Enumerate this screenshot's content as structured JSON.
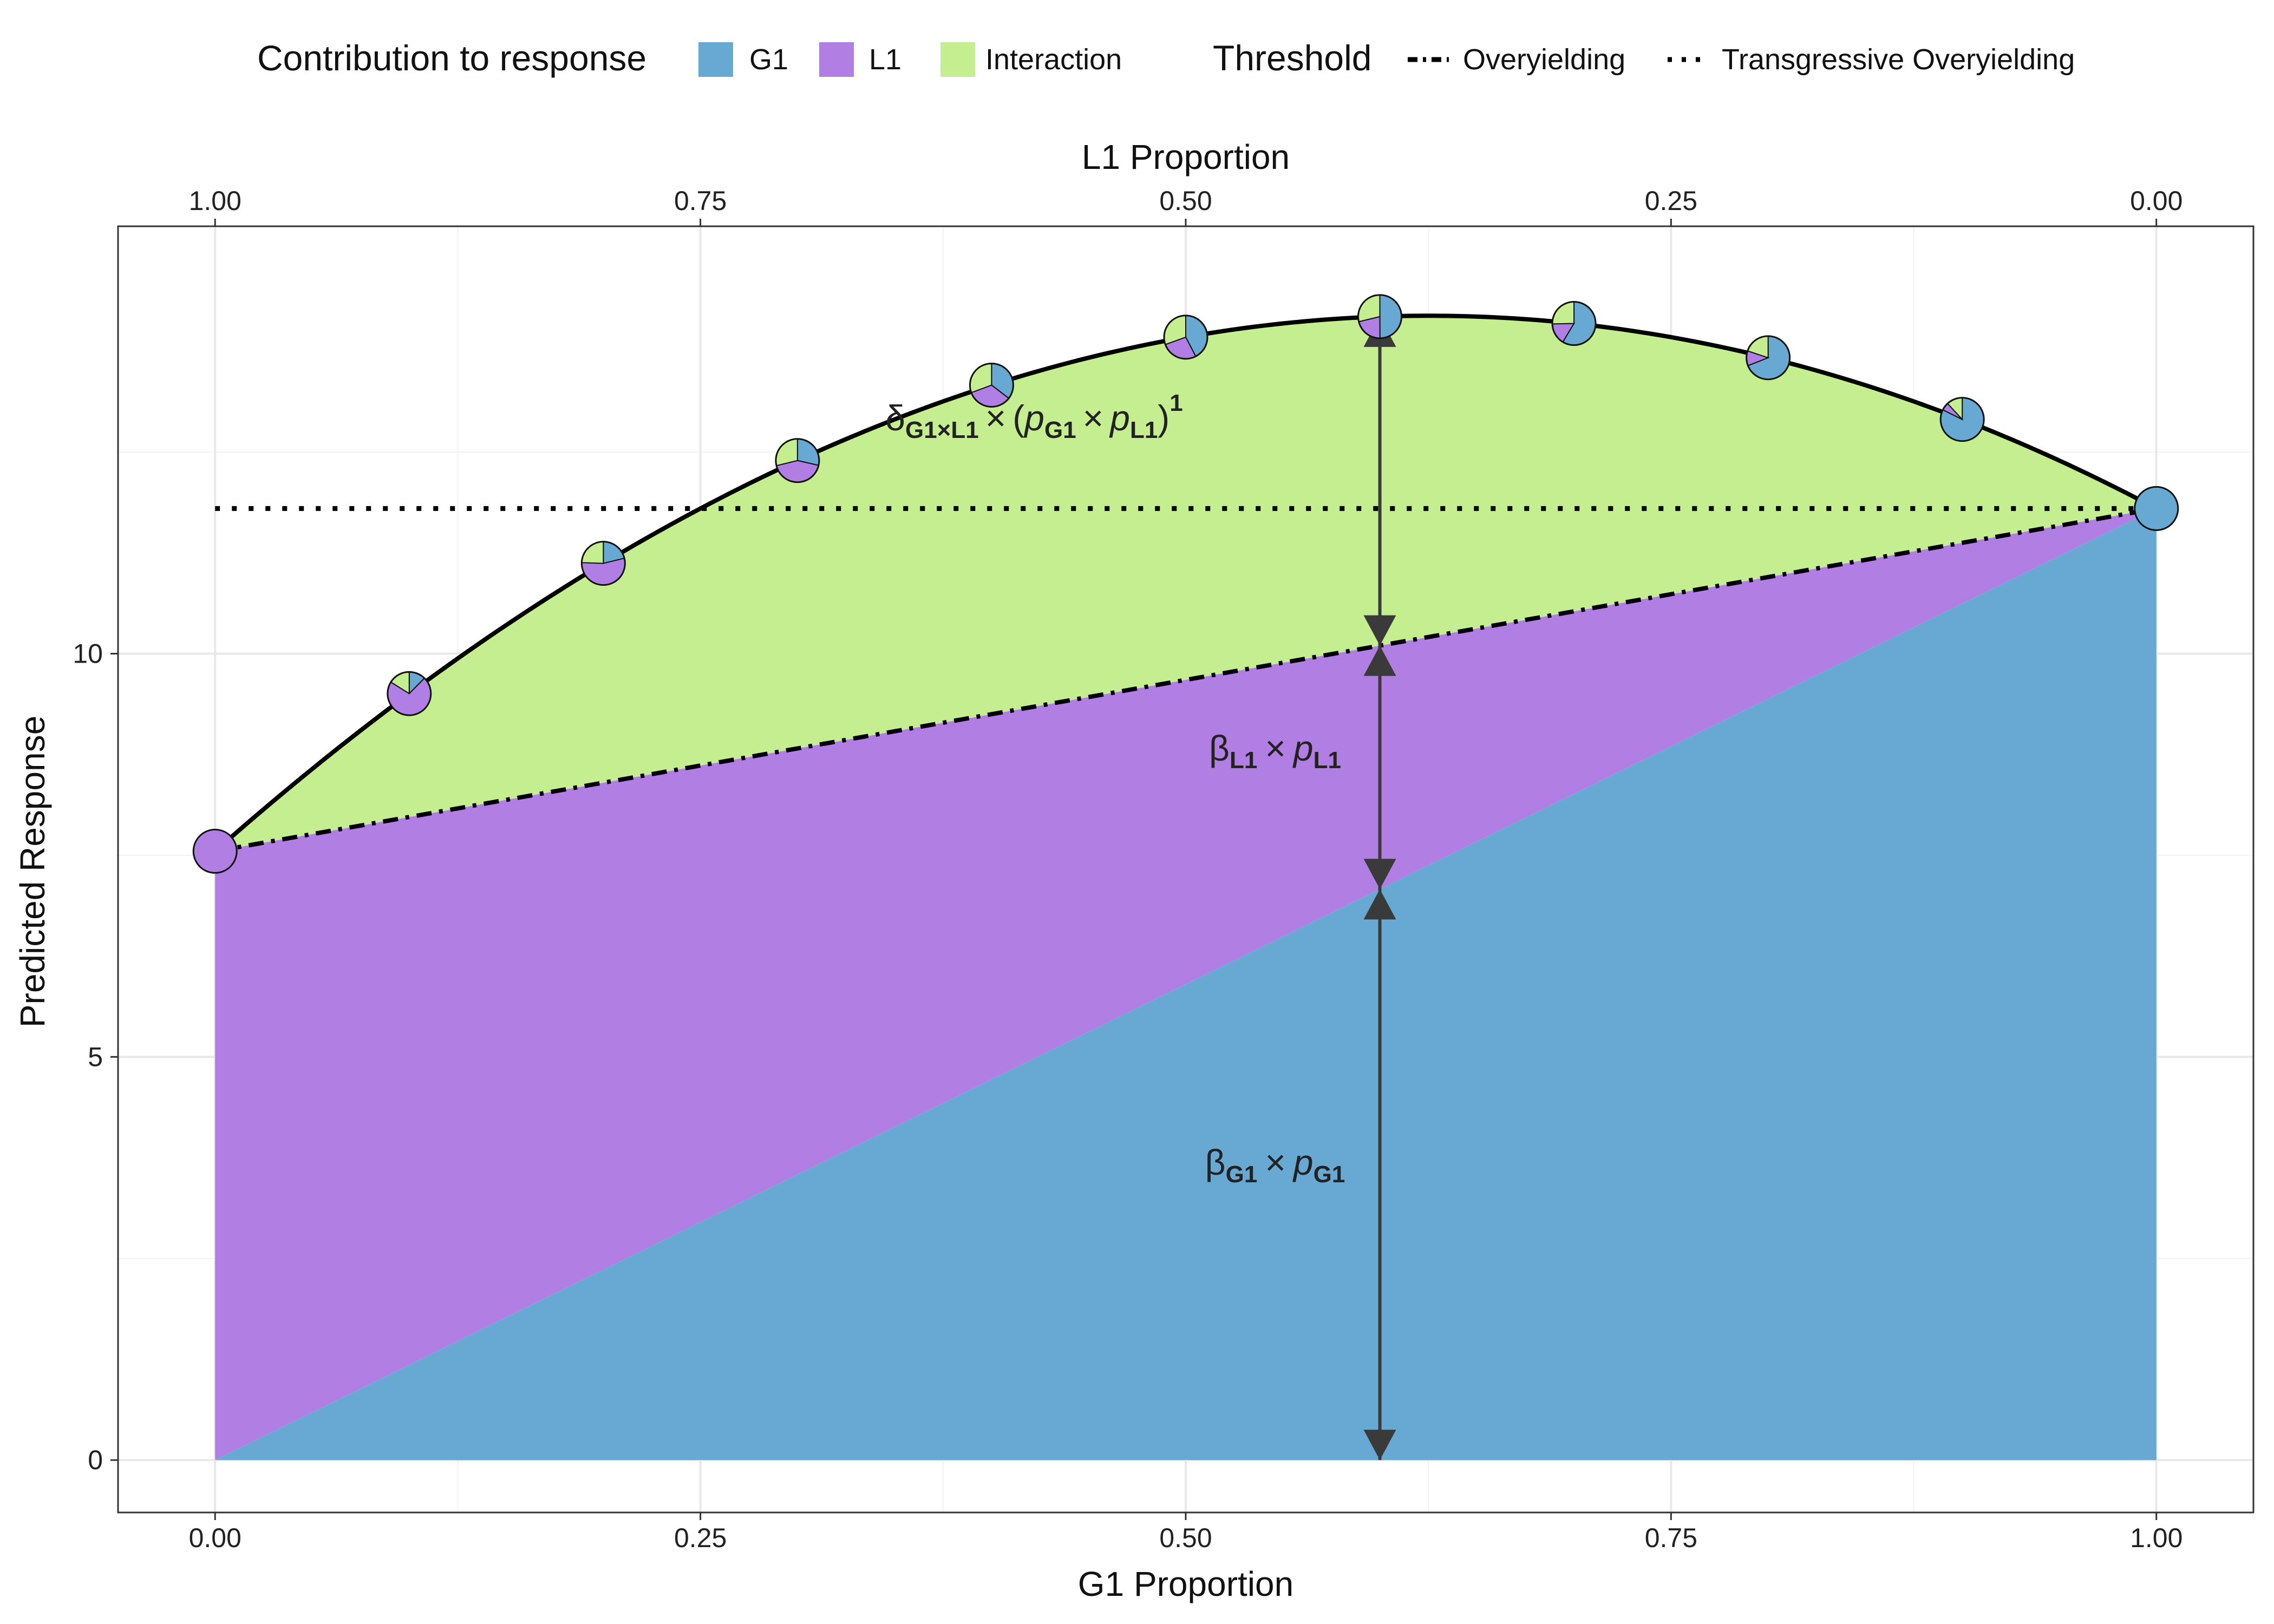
{
  "chart_data": {
    "type": "area",
    "xlabel": "G1 Proportion",
    "xlabel_top": "L1 Proportion",
    "ylabel": "Predicted Response",
    "xlim": [
      -0.05,
      1.05
    ],
    "ylim": [
      -0.65,
      15.3
    ],
    "x_ticks": [
      0,
      0.25,
      0.5,
      0.75,
      1
    ],
    "x_tick_labels": [
      "0.00",
      "0.25",
      "0.50",
      "0.75",
      "1.00"
    ],
    "x_top_tick_labels": [
      "1.00",
      "0.75",
      "0.50",
      "0.25",
      "0.00"
    ],
    "y_ticks": [
      0,
      5,
      10
    ],
    "y_tick_labels": [
      "0",
      "5",
      "10"
    ],
    "grid": true,
    "coefficients": {
      "beta_G1": 11.8,
      "beta_L1": 7.55,
      "delta_G1xL1": 17.0,
      "theta": 1
    },
    "series": [
      {
        "name": "G1",
        "color": "#67A9D2",
        "formula": "beta_G1 * p_G1"
      },
      {
        "name": "L1",
        "color": "#B17FE3",
        "formula": "beta_L1 * p_L1"
      },
      {
        "name": "Interaction",
        "color": "#C5EE91",
        "formula": "delta * (p_G1 * p_L1)^theta"
      }
    ],
    "pie_points_x": [
      0,
      0.1,
      0.2,
      0.3,
      0.4,
      0.5,
      0.6,
      0.7,
      0.8,
      0.9,
      1.0
    ],
    "thresholds": {
      "overyielding": "line from (0, 7.55) to (1, 11.8)",
      "transgressive_overyielding_y": 11.8
    },
    "arrow_at_x": 0.6,
    "legend": {
      "position": "top",
      "fill_title": "Contribution to response",
      "fill_entries": [
        "G1",
        "L1",
        "Interaction"
      ],
      "line_title": "Threshold",
      "line_entries": [
        "Overyielding",
        "Transgressive Overyielding"
      ]
    },
    "annotations": {
      "interaction": {
        "symbol": "δ",
        "sub": "G1×L1",
        "times": "×",
        "paren_open": "(",
        "p1": "p",
        "p1_sub": "G1",
        "p2": "p",
        "p2_sub": "L1",
        "paren_close": ")",
        "exponent": "1"
      },
      "l1": {
        "symbol": "β",
        "sub": "L1",
        "times": "×",
        "p": "p",
        "p_sub": "L1"
      },
      "g1": {
        "symbol": "β",
        "sub": "G1",
        "times": "×",
        "p": "p",
        "p_sub": "G1"
      }
    }
  }
}
